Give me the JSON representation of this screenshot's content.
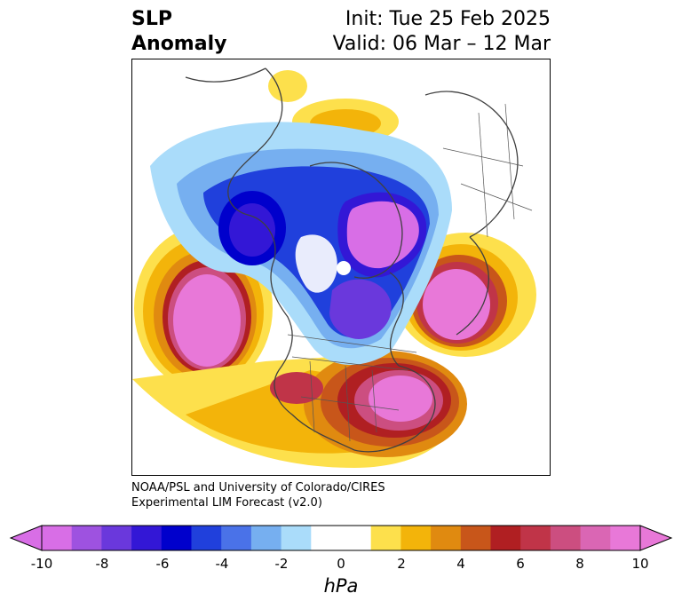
{
  "title": {
    "variable": "SLP",
    "subvariable": "Anomaly",
    "init": "Init: Tue 25 Feb 2025",
    "valid": "Valid: 06 Mar – 12 Mar"
  },
  "credits": {
    "line1": "NOAA/PSL and University of Colorado/CIRES",
    "line2": "Experimental LIM Forecast (v2.0)"
  },
  "colorbar": {
    "units": "hPa",
    "tick_labels": [
      "-10",
      "-8",
      "-6",
      "-4",
      "-2",
      "0",
      "2",
      "4",
      "6",
      "8",
      "10"
    ],
    "colors": [
      "#d86ee6",
      "#9e52e0",
      "#6a38dc",
      "#3317d6",
      "#0000cc",
      "#2040dc",
      "#4a72e8",
      "#76aff0",
      "#aadcfa",
      "#ffffff",
      "#ffffff",
      "#fde04c",
      "#f3b40a",
      "#e08a10",
      "#c8561a",
      "#b01f22",
      "#c03448",
      "#cc4e80",
      "#da66b4",
      "#e878d8"
    ],
    "extend": "both"
  }
}
